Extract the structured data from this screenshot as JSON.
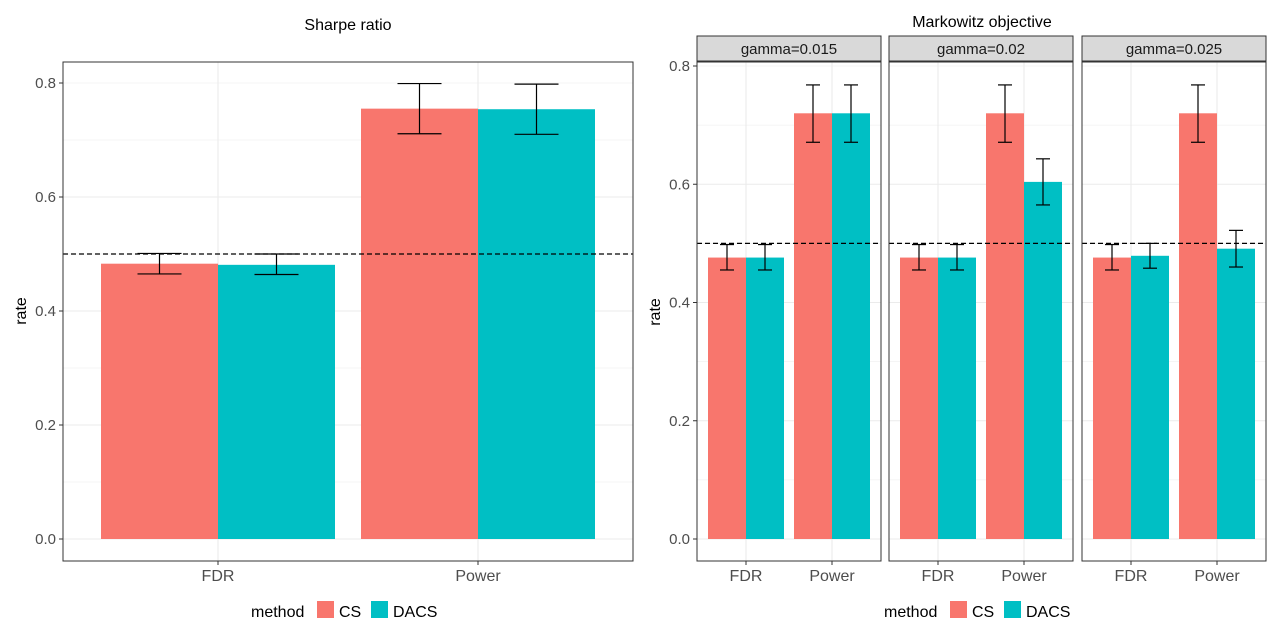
{
  "colors": {
    "cs": "#F8766D",
    "dacs": "#00BFC4",
    "strip": "#D9D9D9",
    "grid": "#EBEBEB",
    "text": "#4D4D4D"
  },
  "legend": {
    "title": "method",
    "items": [
      "CS",
      "DACS"
    ]
  },
  "chart_data": [
    {
      "type": "bar",
      "title": "Sharpe ratio",
      "ylabel": "rate",
      "xlabel": "",
      "categories": [
        "FDR",
        "Power"
      ],
      "ylim": [
        0,
        0.84
      ],
      "yticks": [
        0.0,
        0.2,
        0.4,
        0.6,
        0.8
      ],
      "yticklabels": [
        "0.0",
        "0.2",
        "0.4",
        "0.6",
        "0.8"
      ],
      "reference_line": 0.5,
      "grid": true,
      "legend_position": "bottom",
      "series": [
        {
          "name": "CS",
          "values": [
            0.483,
            0.755
          ],
          "err_low": [
            0.465,
            0.711
          ],
          "err_high": [
            0.501,
            0.799
          ]
        },
        {
          "name": "DACS",
          "values": [
            0.481,
            0.754
          ],
          "err_low": [
            0.464,
            0.71
          ],
          "err_high": [
            0.5,
            0.798
          ]
        }
      ]
    },
    {
      "type": "bar",
      "title": "Markowitz objective",
      "ylabel": "rate",
      "xlabel": "",
      "categories": [
        "FDR",
        "Power"
      ],
      "ylim": [
        0,
        0.81
      ],
      "yticks": [
        0.0,
        0.2,
        0.4,
        0.6,
        0.8
      ],
      "yticklabels": [
        "0.0",
        "0.2",
        "0.4",
        "0.6",
        "0.8"
      ],
      "reference_line": 0.5,
      "grid": true,
      "legend_position": "bottom",
      "facets": [
        {
          "label": "gamma=0.015",
          "series": [
            {
              "name": "CS",
              "values": [
                0.476,
                0.72
              ],
              "err_low": [
                0.455,
                0.671
              ],
              "err_high": [
                0.498,
                0.768
              ]
            },
            {
              "name": "DACS",
              "values": [
                0.476,
                0.72
              ],
              "err_low": [
                0.455,
                0.671
              ],
              "err_high": [
                0.498,
                0.768
              ]
            }
          ]
        },
        {
          "label": "gamma=0.02",
          "series": [
            {
              "name": "CS",
              "values": [
                0.476,
                0.72
              ],
              "err_low": [
                0.455,
                0.671
              ],
              "err_high": [
                0.498,
                0.768
              ]
            },
            {
              "name": "DACS",
              "values": [
                0.476,
                0.604
              ],
              "err_low": [
                0.455,
                0.565
              ],
              "err_high": [
                0.498,
                0.643
              ]
            }
          ]
        },
        {
          "label": "gamma=0.025",
          "series": [
            {
              "name": "CS",
              "values": [
                0.476,
                0.72
              ],
              "err_low": [
                0.455,
                0.671
              ],
              "err_high": [
                0.498,
                0.768
              ]
            },
            {
              "name": "DACS",
              "values": [
                0.479,
                0.491
              ],
              "err_low": [
                0.458,
                0.46
              ],
              "err_high": [
                0.5,
                0.522
              ]
            }
          ]
        }
      ]
    }
  ]
}
